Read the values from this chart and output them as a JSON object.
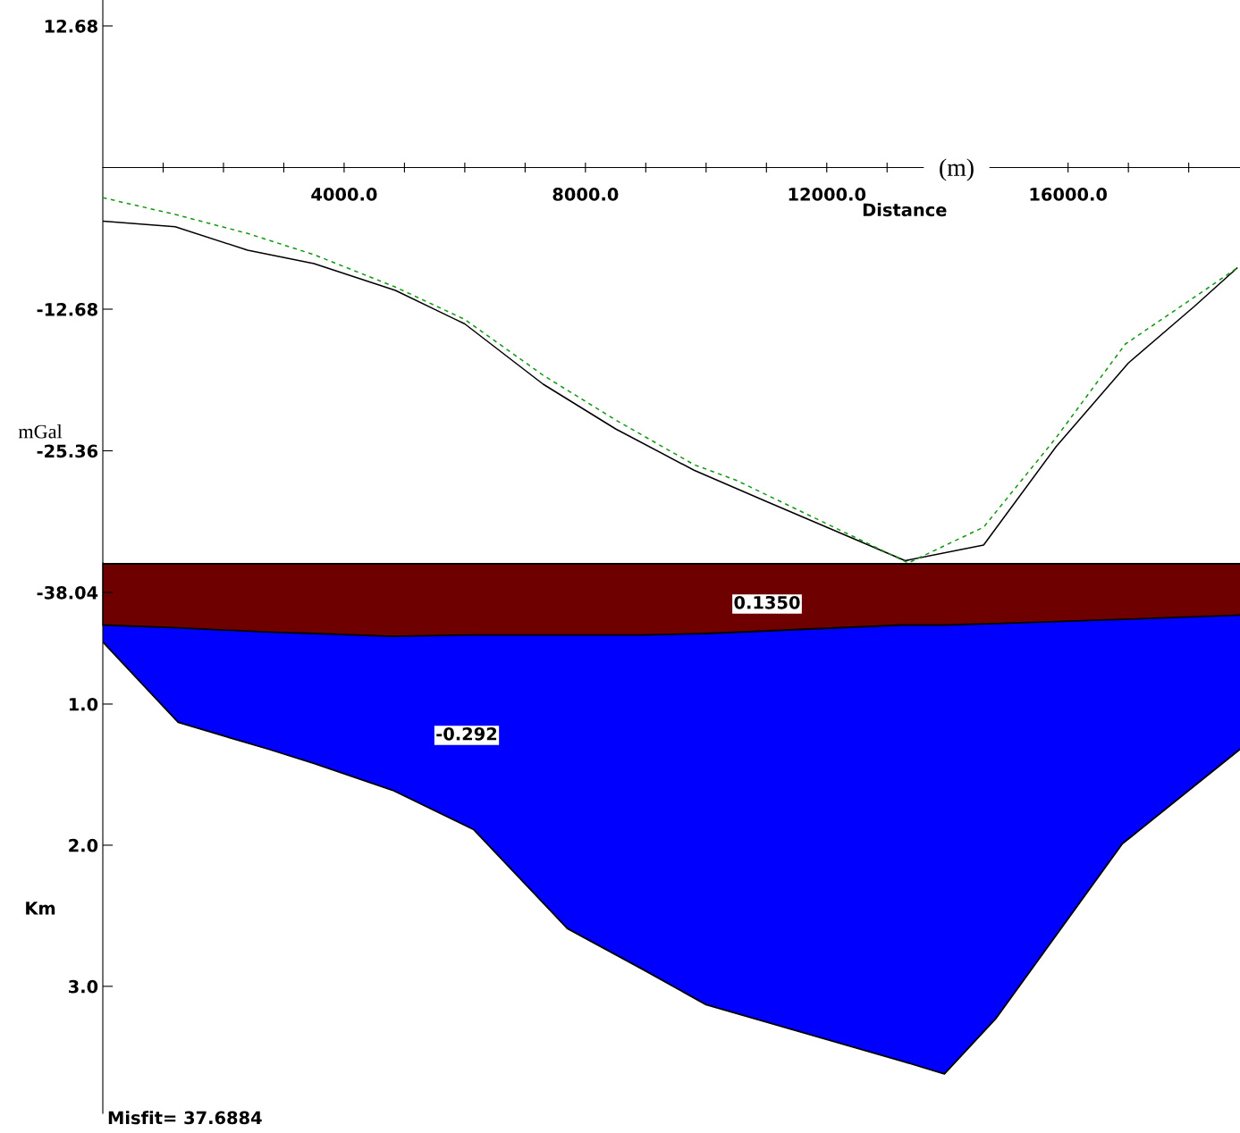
{
  "chart_data": [
    {
      "type": "line",
      "xlabel": "Distance",
      "ylabel": "mGal",
      "xlim": [
        0,
        18850
      ],
      "ylim": [
        -41.0,
        15.0
      ],
      "xticks": [
        {
          "value": 1000,
          "label": null
        },
        {
          "value": 2000,
          "label": null
        },
        {
          "value": 3000,
          "label": null
        },
        {
          "value": 4000,
          "label": "4000.0"
        },
        {
          "value": 5000,
          "label": null
        },
        {
          "value": 6000,
          "label": null
        },
        {
          "value": 7000,
          "label": null
        },
        {
          "value": 8000,
          "label": "8000.0"
        },
        {
          "value": 9000,
          "label": null
        },
        {
          "value": 10000,
          "label": null
        },
        {
          "value": 11000,
          "label": null
        },
        {
          "value": 12000,
          "label": "12000.0"
        },
        {
          "value": 13000,
          "label": null
        },
        {
          "value": 16000,
          "label": "16000.0"
        },
        {
          "value": 17000,
          "label": null
        },
        {
          "value": 18000,
          "label": null
        }
      ],
      "yticks": [
        12.68,
        -12.68,
        -25.36,
        -38.04
      ],
      "series": [
        {
          "color": "#000000",
          "line_style": "solid",
          "x": [
            0,
            1200,
            2400,
            3500,
            4850,
            6000,
            7300,
            8500,
            9800,
            11000,
            13300,
            14600,
            15800,
            17000,
            18100,
            18800
          ],
          "values": [
            -4.8,
            -5.3,
            -7.4,
            -8.6,
            -11.0,
            -14.0,
            -19.4,
            -23.4,
            -27.1,
            -29.9,
            -35.2,
            -33.8,
            -25.0,
            -17.5,
            -12.4,
            -9.0
          ]
        },
        {
          "color": "#119911",
          "line_style": "dashed",
          "x": [
            0,
            1200,
            2400,
            3500,
            4850,
            6000,
            7300,
            8500,
            9800,
            10500,
            13350,
            14600,
            15800,
            16950,
            18150,
            18800
          ],
          "values": [
            -2.7,
            -4.2,
            -5.9,
            -7.8,
            -10.7,
            -13.6,
            -18.6,
            -22.6,
            -26.6,
            -28.0,
            -35.4,
            -32.2,
            -24.2,
            -15.8,
            -11.4,
            -9.0
          ]
        }
      ],
      "annotations": [
        "(m)"
      ],
      "grid": false,
      "legend": false
    },
    {
      "type": "area",
      "stacked": true,
      "ylabel": "Km",
      "tick_labels": "y",
      "xlim": [
        0,
        18850
      ],
      "ylim": [
        3.9,
        0
      ],
      "yticks": [
        {
          "value": 1,
          "label": "1.0"
        },
        {
          "value": 2,
          "label": "2.0"
        },
        {
          "value": 3,
          "label": "3.0"
        }
      ],
      "x": [
        0,
        1250,
        2750,
        3500,
        4800,
        6150,
        7700,
        8950,
        10000,
        13250,
        13950,
        14800,
        16900,
        18850
      ],
      "series": [
        {
          "color": "#6e0000",
          "values": [
            0.44,
            0.46,
            0.49,
            0.5,
            0.52,
            0.51,
            0.51,
            0.51,
            0.5,
            0.44,
            0.44,
            0.43,
            0.4,
            0.37
          ]
        },
        {
          "color": "#0000ff",
          "values": [
            0.12,
            0.67,
            0.83,
            0.92,
            1.09,
            1.38,
            2.08,
            2.37,
            2.63,
            3.09,
            3.18,
            2.8,
            1.59,
            0.95
          ]
        }
      ],
      "ref_lines": [
        {
          "axis": "y",
          "value": 0,
          "color": "#000000"
        }
      ],
      "annotations": [
        "0.1350",
        "-0.292",
        "Misfit= 37.6884"
      ],
      "grid": false
    }
  ]
}
